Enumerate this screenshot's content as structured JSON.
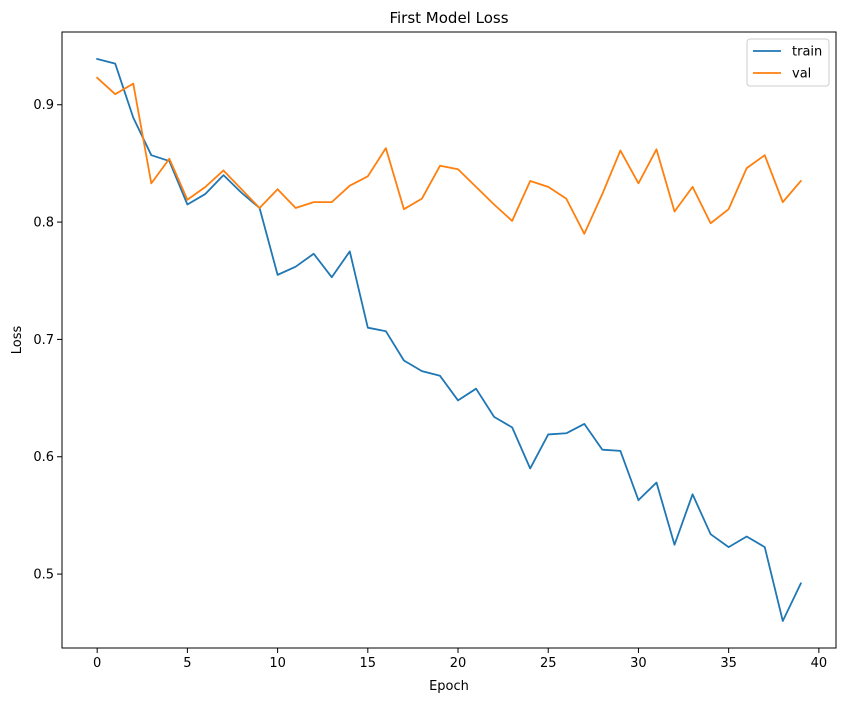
{
  "chart_data": {
    "type": "line",
    "title": "First Model Loss",
    "xlabel": "Epoch",
    "ylabel": "Loss",
    "xlim": [
      -1.95,
      40.95
    ],
    "ylim": [
      0.437,
      0.962
    ],
    "xticks": [
      0,
      5,
      10,
      15,
      20,
      25,
      30,
      35,
      40
    ],
    "yticks": [
      0.5,
      0.6,
      0.7,
      0.8,
      0.9
    ],
    "ytick_labels": [
      "0.5",
      "0.6",
      "0.7",
      "0.8",
      "0.9"
    ],
    "grid": false,
    "legend_position": "top-right",
    "series": [
      {
        "name": "train",
        "color": "#1f77b4",
        "x": [
          0,
          1,
          2,
          3,
          4,
          5,
          6,
          7,
          8,
          9,
          10,
          11,
          12,
          13,
          14,
          15,
          16,
          17,
          18,
          19,
          20,
          21,
          22,
          23,
          24,
          25,
          26,
          27,
          28,
          29,
          30,
          31,
          32,
          33,
          34,
          35,
          36,
          37,
          38,
          39
        ],
        "values": [
          0.939,
          0.935,
          0.889,
          0.857,
          0.852,
          0.815,
          0.824,
          0.84,
          0.825,
          0.812,
          0.755,
          0.762,
          0.773,
          0.753,
          0.775,
          0.71,
          0.707,
          0.682,
          0.673,
          0.669,
          0.648,
          0.658,
          0.634,
          0.625,
          0.59,
          0.619,
          0.62,
          0.628,
          0.606,
          0.605,
          0.563,
          0.578,
          0.525,
          0.568,
          0.534,
          0.523,
          0.532,
          0.523,
          0.46,
          0.492
        ]
      },
      {
        "name": "val",
        "color": "#ff7f0e",
        "x": [
          0,
          1,
          2,
          3,
          4,
          5,
          6,
          7,
          8,
          9,
          10,
          11,
          12,
          13,
          14,
          15,
          16,
          17,
          18,
          19,
          20,
          21,
          22,
          23,
          24,
          25,
          26,
          27,
          28,
          29,
          30,
          31,
          32,
          33,
          34,
          35,
          36,
          37,
          38,
          39
        ],
        "values": [
          0.923,
          0.909,
          0.918,
          0.833,
          0.854,
          0.819,
          0.83,
          0.844,
          0.828,
          0.812,
          0.828,
          0.812,
          0.817,
          0.817,
          0.831,
          0.839,
          0.863,
          0.811,
          0.82,
          0.848,
          0.845,
          0.83,
          0.815,
          0.801,
          0.835,
          0.83,
          0.82,
          0.79,
          0.824,
          0.861,
          0.833,
          0.862,
          0.809,
          0.83,
          0.799,
          0.811,
          0.846,
          0.857,
          0.817,
          0.835
        ]
      }
    ]
  }
}
